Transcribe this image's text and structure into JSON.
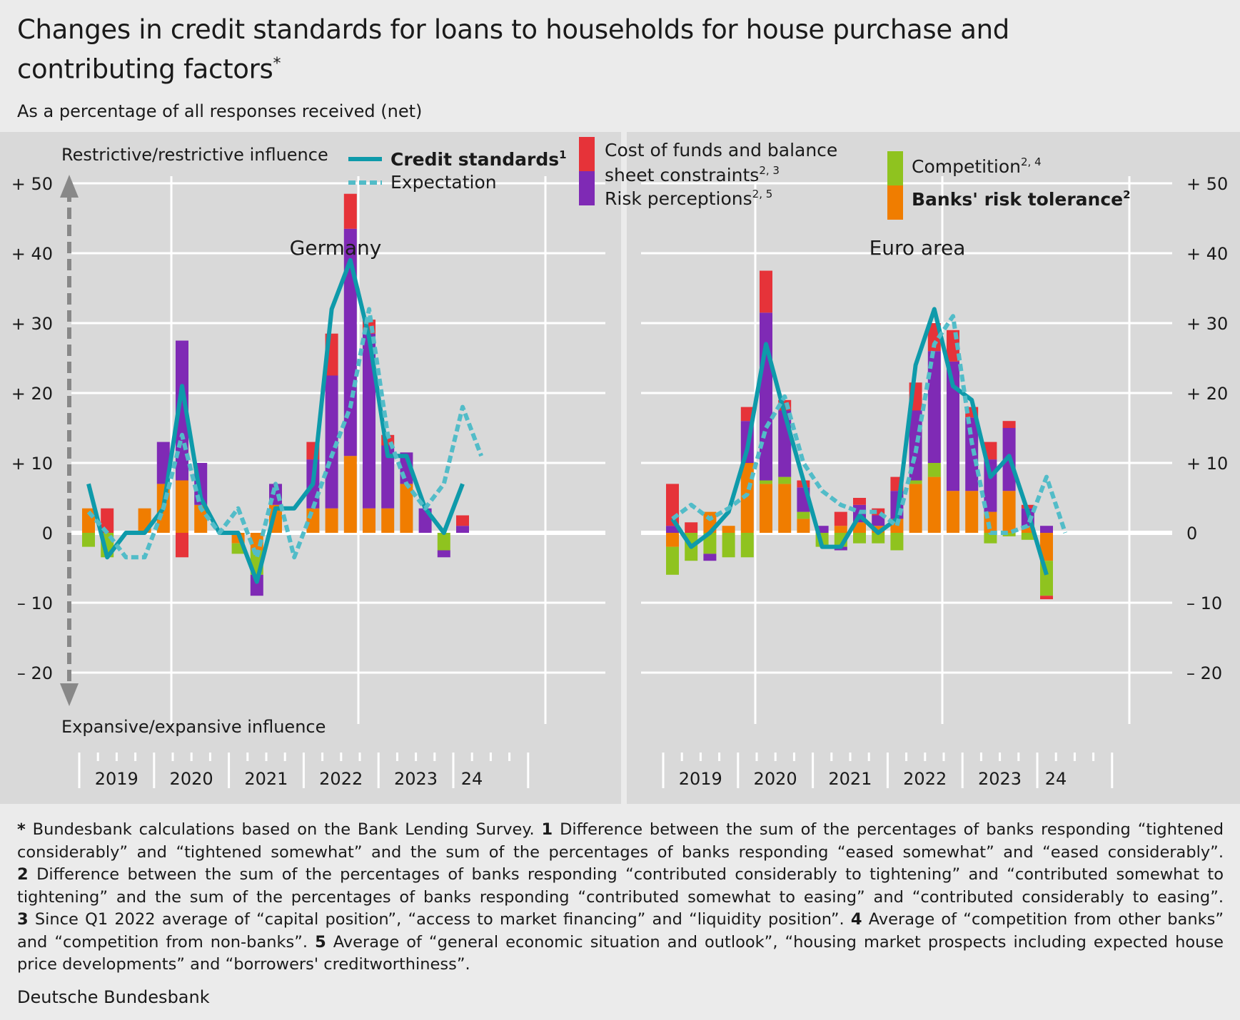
{
  "header": {
    "title": "Changes in credit standards for loans to households for house purchase and contributing factors",
    "title_marker": "*",
    "subtitle": "As a percentage of all responses received (net)"
  },
  "footnotes": [
    {
      "marker": "*",
      "text": "Bundesbank calculations based on the Bank Lending Survey."
    },
    {
      "marker": "1",
      "text": "Difference between the sum of the percentages of banks responding “tightened considerably” and “tightened somewhat” and the sum of the percentages of banks responding “eased somewhat” and “eased considerably”."
    },
    {
      "marker": "2",
      "text": "Difference between the sum of the percentages of banks responding “contributed considerably to tightening” and “contributed somewhat to tightening” and the sum of the percentages of banks responding “contributed somewhat to easing” and “contributed considerably to easing”."
    },
    {
      "marker": "3",
      "text": "Since Q1 2022 average of “capital position”, “access to market financing” and “liquidity position”."
    },
    {
      "marker": "4",
      "text": "Average of “competition from other banks” and “competition from non-banks”."
    },
    {
      "marker": "5",
      "text": "Average of “general economic situation and outlook”, “housing market prospects including expected house price developments” and “borrowers' creditworthiness”."
    }
  ],
  "source": "Deutsche Bundesbank",
  "colors": {
    "background": "#ebebeb",
    "plot_background": "#d9d9d9",
    "cost_of_funds": "#e63339",
    "risk_perceptions": "#7f2ab5",
    "competition": "#8fc31f",
    "risk_tolerance": "#f07d00",
    "credit_standards": "#0e9aaa",
    "expectation": "#52bcc8",
    "arrow": "#888888"
  },
  "chart_data": [
    {
      "type": "bar",
      "title": "Germany",
      "x": [
        "2019 Q1",
        "2019 Q2",
        "2019 Q3",
        "2019 Q4",
        "2020 Q1",
        "2020 Q2",
        "2020 Q3",
        "2020 Q4",
        "2021 Q1",
        "2021 Q2",
        "2021 Q3",
        "2021 Q4",
        "2022 Q1",
        "2022 Q2",
        "2022 Q3",
        "2022 Q4",
        "2023 Q1",
        "2023 Q2",
        "2023 Q3",
        "2023 Q4",
        "2024 Q1",
        "2024 Q2"
      ],
      "stacked": true,
      "series": [
        {
          "name": "Cost of funds and balance sheet constraints",
          "footnotes": "2, 3",
          "key": "cost_of_funds",
          "values": [
            0,
            3.5,
            0,
            0,
            0,
            -3.5,
            0,
            0,
            0,
            0,
            0,
            0,
            2.5,
            6,
            5,
            2,
            1.5,
            0,
            0,
            0,
            1.5,
            null
          ]
        },
        {
          "name": "Risk perceptions",
          "footnotes": "2, 5",
          "key": "risk_perceptions",
          "values": [
            0,
            0,
            0,
            0,
            6,
            20,
            6,
            0,
            0,
            -3,
            3,
            0,
            7,
            19,
            32.5,
            25,
            9,
            4.5,
            3.5,
            -1,
            1,
            null
          ]
        },
        {
          "name": "Competition",
          "footnotes": "2, 4",
          "key": "competition",
          "values": [
            -2,
            -3.5,
            0,
            0,
            0,
            0,
            0,
            0,
            -1.5,
            -3.5,
            0,
            0,
            0,
            0,
            0,
            0,
            0,
            0,
            0,
            -2.5,
            0,
            null
          ]
        },
        {
          "name": "Banks' risk tolerance",
          "footnotes": "2",
          "key": "risk_tolerance",
          "values": [
            3.5,
            0,
            0,
            3.5,
            7,
            7.5,
            4,
            0,
            -1.5,
            -2.5,
            4,
            0,
            3.5,
            3.5,
            11,
            3.5,
            3.5,
            7,
            0,
            0,
            0,
            null
          ]
        }
      ],
      "lines": [
        {
          "name": "Credit standards",
          "footnotes": "1",
          "key": "credit_standards",
          "values": [
            7,
            -3.5,
            0,
            0,
            3.5,
            21,
            5,
            0,
            0,
            -7,
            3.5,
            3.5,
            7,
            32,
            39,
            28,
            11,
            11,
            3.5,
            0,
            7,
            null
          ]
        },
        {
          "name": "Expectation",
          "key": "expectation",
          "values": [
            3,
            0,
            -3.5,
            -3.5,
            3.5,
            14,
            3.5,
            0,
            3.5,
            -3.5,
            7,
            -3.5,
            3.5,
            11,
            18,
            32,
            14,
            7,
            3.5,
            7,
            18,
            11
          ]
        }
      ],
      "xlabels": [
        "2019",
        "2020",
        "2021",
        "2022",
        "2023",
        "24"
      ],
      "ylim": [
        -20,
        50
      ]
    },
    {
      "type": "bar",
      "title": "Euro area",
      "x": [
        "2019 Q1",
        "2019 Q2",
        "2019 Q3",
        "2019 Q4",
        "2020 Q1",
        "2020 Q2",
        "2020 Q3",
        "2020 Q4",
        "2021 Q1",
        "2021 Q2",
        "2021 Q3",
        "2021 Q4",
        "2022 Q1",
        "2022 Q2",
        "2022 Q3",
        "2022 Q4",
        "2023 Q1",
        "2023 Q2",
        "2023 Q3",
        "2023 Q4",
        "2024 Q1",
        "2024 Q2"
      ],
      "stacked": true,
      "series": [
        {
          "name": "Cost of funds and balance sheet constraints",
          "footnotes": "2, 3",
          "key": "cost_of_funds",
          "values": [
            6,
            1.5,
            0,
            0,
            2,
            6,
            1.5,
            1,
            0,
            2,
            1,
            1,
            2,
            4,
            4,
            4.5,
            1.5,
            2.5,
            1,
            0.5,
            -0.5,
            null
          ]
        },
        {
          "name": "Risk perceptions",
          "footnotes": "2, 5",
          "key": "risk_perceptions",
          "values": [
            1,
            0,
            -1,
            0,
            6,
            24,
            9.5,
            3.5,
            1,
            -0.5,
            2.5,
            1.5,
            4,
            10,
            16,
            18.5,
            10.5,
            7.5,
            9,
            2.5,
            1,
            null
          ]
        },
        {
          "name": "Competition",
          "footnotes": "2, 4",
          "key": "competition",
          "values": [
            -4,
            -4,
            -3,
            -3.5,
            -3.5,
            0.5,
            1,
            1,
            -2,
            -2,
            -1.5,
            -1.5,
            -2.5,
            0.5,
            2,
            0,
            0,
            -1.5,
            -0.5,
            -1,
            -5,
            null
          ]
        },
        {
          "name": "Banks' risk tolerance",
          "footnotes": "2",
          "key": "risk_tolerance",
          "values": [
            -2,
            0,
            3,
            1,
            10,
            7,
            7,
            2,
            0,
            1,
            1.5,
            1,
            2,
            7,
            8,
            6,
            6,
            3,
            6,
            1,
            -4,
            null
          ]
        }
      ],
      "lines": [
        {
          "name": "Credit standards",
          "footnotes": "1",
          "key": "credit_standards",
          "values": [
            2,
            -2,
            0,
            3,
            12,
            27,
            17,
            7.5,
            -2,
            -2,
            2.5,
            0,
            2,
            24,
            32,
            21,
            19,
            8,
            11,
            3,
            -6,
            null
          ]
        },
        {
          "name": "Expectation",
          "key": "expectation",
          "values": [
            2,
            4,
            2,
            3.5,
            5.5,
            15,
            19.5,
            10,
            6,
            4,
            3,
            3,
            1,
            11.5,
            27,
            31,
            13,
            0,
            0,
            1,
            8,
            0
          ]
        }
      ],
      "xlabels": [
        "2019",
        "2020",
        "2021",
        "2022",
        "2023",
        "24"
      ],
      "ylim": [
        -20,
        50
      ]
    }
  ],
  "axis": {
    "ticks": [
      50,
      40,
      30,
      20,
      10,
      0,
      -10,
      -20
    ],
    "tick_labels": [
      "+ 50",
      "+ 40",
      "+ 30",
      "+ 20",
      "+ 10",
      "0",
      "– 10",
      "– 20"
    ],
    "top_label": "Restrictive/restrictive influence",
    "bottom_label": "Expansive/expansive influence"
  },
  "legend": {
    "credit_standards": {
      "label": "Credit standards",
      "sup": "1"
    },
    "expectation": {
      "label": "Expectation",
      "sup": ""
    },
    "cost_of_funds": {
      "line1": "Cost of funds and balance",
      "line2": "sheet constraints",
      "sup": "2, 3"
    },
    "risk_perceptions": {
      "label": "Risk perceptions",
      "sup": "2, 5"
    },
    "competition": {
      "label": "Competition",
      "sup": "2, 4"
    },
    "risk_tolerance": {
      "label": "Banks' risk tolerance",
      "sup": "2"
    }
  }
}
